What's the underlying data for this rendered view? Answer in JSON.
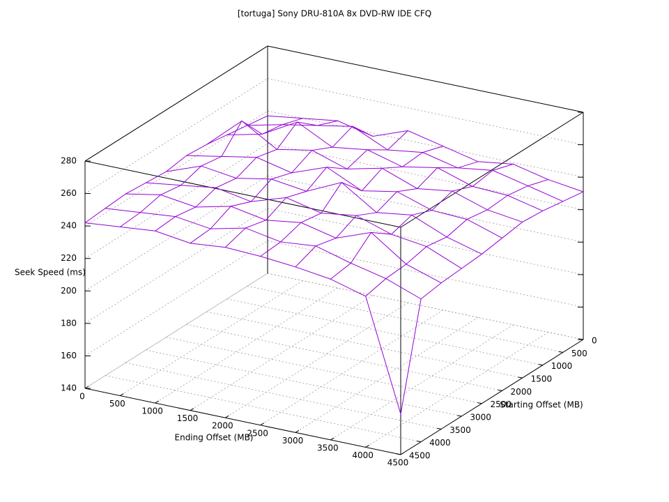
{
  "chart_data": {
    "type": "surface3d",
    "title": "[tortuga] Sony DRU-810A 8x DVD-RW IDE CFQ",
    "xlabel": "Ending Offset (MB)",
    "ylabel": "Starting Offset (MB)",
    "zlabel": "Seek Speed (ms)",
    "x": [
      0,
      500,
      1000,
      1500,
      2000,
      2500,
      3000,
      3500,
      4000,
      4500
    ],
    "y": [
      0,
      500,
      1000,
      1500,
      2000,
      2500,
      3000,
      3500,
      4000,
      4500
    ],
    "z": [
      [
        237,
        240,
        243,
        238,
        246,
        241,
        236,
        239,
        234,
        231
      ],
      [
        239,
        244,
        248,
        252,
        242,
        245,
        240,
        243,
        238,
        233
      ],
      [
        241,
        246,
        258,
        247,
        250,
        244,
        248,
        241,
        240,
        235
      ],
      [
        243,
        262,
        249,
        253,
        246,
        251,
        243,
        246,
        239,
        236
      ],
      [
        244,
        248,
        252,
        247,
        255,
        245,
        249,
        242,
        241,
        234
      ],
      [
        242,
        250,
        247,
        251,
        248,
        258,
        244,
        247,
        238,
        232
      ],
      [
        243,
        246,
        249,
        245,
        252,
        247,
        250,
        243,
        240,
        231
      ],
      [
        244,
        248,
        245,
        250,
        246,
        249,
        244,
        252,
        237,
        230
      ],
      [
        243,
        245,
        247,
        244,
        249,
        245,
        247,
        241,
        236,
        228
      ],
      [
        242,
        244,
        246,
        243,
        245,
        244,
        242,
        239,
        233,
        165
      ]
    ],
    "color": "#9400d3",
    "xlim": [
      0,
      4500
    ],
    "ylim": [
      0,
      4500
    ],
    "zlim": [
      140,
      280
    ],
    "xticks": [
      0,
      500,
      1000,
      1500,
      2000,
      2500,
      3000,
      3500,
      4000,
      4500
    ],
    "yticks": [
      0,
      500,
      1000,
      1500,
      2000,
      2500,
      3000,
      3500,
      4000,
      4500
    ],
    "zticks": [
      140,
      160,
      180,
      200,
      220,
      240,
      260,
      280
    ],
    "grid": true
  }
}
